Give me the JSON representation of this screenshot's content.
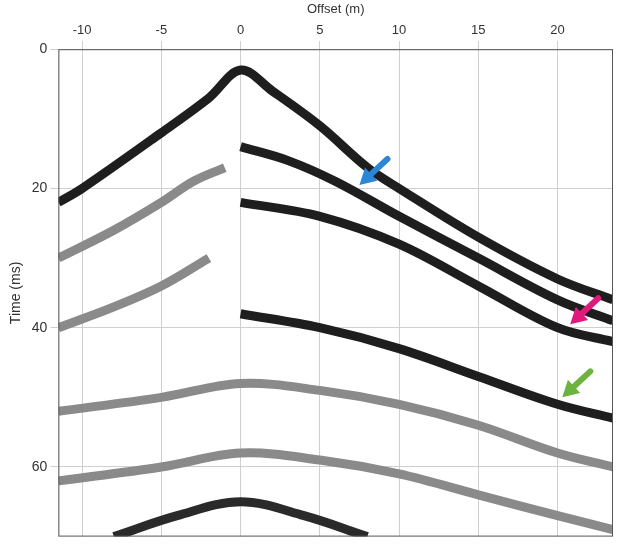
{
  "chart_data": {
    "type": "line",
    "x_label": "Offset (m)",
    "y_label": "Time (ms)",
    "xlim": [
      -11.5,
      23.5
    ],
    "xticks": [
      -10,
      -5,
      0,
      5,
      10,
      15,
      20
    ],
    "ylim": [
      0,
      70
    ],
    "yticks": [
      0,
      20,
      40,
      60
    ],
    "grid": true,
    "series": [
      {
        "color": "#1e1e1e",
        "x": [
          -11.5,
          -10,
          -5,
          -2,
          0,
          2,
          5,
          8,
          10,
          15,
          20,
          23.5
        ],
        "values": [
          22,
          20,
          12,
          7,
          3,
          6,
          11,
          17,
          20,
          27,
          33,
          36
        ]
      },
      {
        "color": "#1e1e1e",
        "x": [
          0,
          3,
          6,
          10,
          15,
          20,
          23.5
        ],
        "values": [
          14,
          16,
          19,
          24,
          30,
          36,
          39
        ]
      },
      {
        "color": "#1e1e1e",
        "x": [
          0,
          5,
          10,
          15,
          20,
          23.5
        ],
        "values": [
          22,
          24,
          28,
          34,
          40,
          42
        ]
      },
      {
        "color": "#1e1e1e",
        "x": [
          0,
          5,
          10,
          15,
          20,
          23.5
        ],
        "values": [
          38,
          40,
          43,
          47,
          51,
          53
        ]
      },
      {
        "color": "#8a8a8a",
        "x": [
          -11.5,
          -8,
          -5,
          -3,
          -1
        ],
        "values": [
          30,
          26,
          22,
          19,
          17
        ]
      },
      {
        "color": "#8a8a8a",
        "x": [
          -11.5,
          -8,
          -5,
          -2
        ],
        "values": [
          40,
          37,
          34,
          30
        ]
      },
      {
        "color": "#8a8a8a",
        "x": [
          -11.5,
          -5,
          0,
          5,
          10,
          15,
          20,
          23.5
        ],
        "values": [
          52,
          50,
          48,
          49,
          51,
          54,
          58,
          60
        ]
      },
      {
        "color": "#8a8a8a",
        "x": [
          -11.5,
          -5,
          0,
          5,
          10,
          15,
          20,
          23.5
        ],
        "values": [
          62,
          60,
          58,
          59,
          61,
          64,
          67,
          69
        ]
      },
      {
        "color": "#2a2a2a",
        "x": [
          -8,
          -4,
          0,
          4,
          8
        ],
        "values": [
          70,
          67,
          65,
          67,
          70
        ]
      }
    ],
    "annotations": [
      {
        "x": 7.5,
        "y": 19.5,
        "color": "#2b86d6"
      },
      {
        "x": 20.8,
        "y": 39.5,
        "color": "#e0197d"
      },
      {
        "x": 20.3,
        "y": 50,
        "color": "#6db33f"
      }
    ]
  }
}
